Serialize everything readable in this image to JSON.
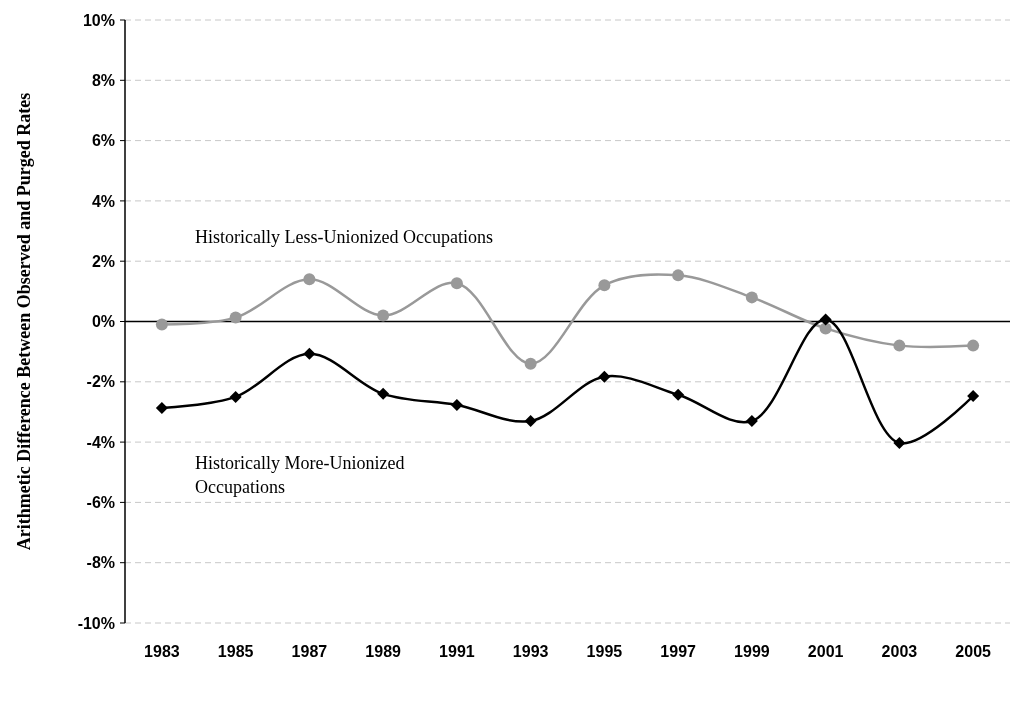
{
  "chart_data": {
    "type": "line",
    "ylabel": "Arithmetic Difference Between Observed and Purged Rates",
    "categories": [
      "1983",
      "1985",
      "1987",
      "1989",
      "1991",
      "1993",
      "1995",
      "1997",
      "1999",
      "2001",
      "2003",
      "2005"
    ],
    "series": [
      {
        "name": "Historically Less-Unionized Occupations",
        "color": "#999999",
        "marker": "circle",
        "values": [
          -0.1,
          0.13,
          1.4,
          0.2,
          1.27,
          -1.4,
          1.2,
          1.53,
          0.8,
          -0.23,
          -0.8,
          -0.8
        ]
      },
      {
        "name": "Historically More-Unionized Occupations",
        "color": "#000000",
        "marker": "diamond",
        "values": [
          -2.87,
          -2.5,
          -1.07,
          -2.4,
          -2.77,
          -3.3,
          -1.83,
          -2.43,
          -3.3,
          0.07,
          -4.03,
          -2.47
        ]
      }
    ],
    "ylim": [
      -10,
      10
    ],
    "yticks": [
      {
        "value": -10,
        "label": "-10%"
      },
      {
        "value": -8,
        "label": "-8%"
      },
      {
        "value": -6,
        "label": "-6%"
      },
      {
        "value": -4,
        "label": "-4%"
      },
      {
        "value": -2,
        "label": "-2%"
      },
      {
        "value": 0,
        "label": "0%"
      },
      {
        "value": 2,
        "label": "2%"
      },
      {
        "value": 4,
        "label": "4%"
      },
      {
        "value": 6,
        "label": "6%"
      },
      {
        "value": 8,
        "label": "8%"
      },
      {
        "value": 10,
        "label": "10%"
      }
    ],
    "grid": "y",
    "line_style": "solid",
    "ref_lines": [
      {
        "axis": "y",
        "value": 0,
        "color": "#000000",
        "line_style": "solid"
      }
    ]
  }
}
